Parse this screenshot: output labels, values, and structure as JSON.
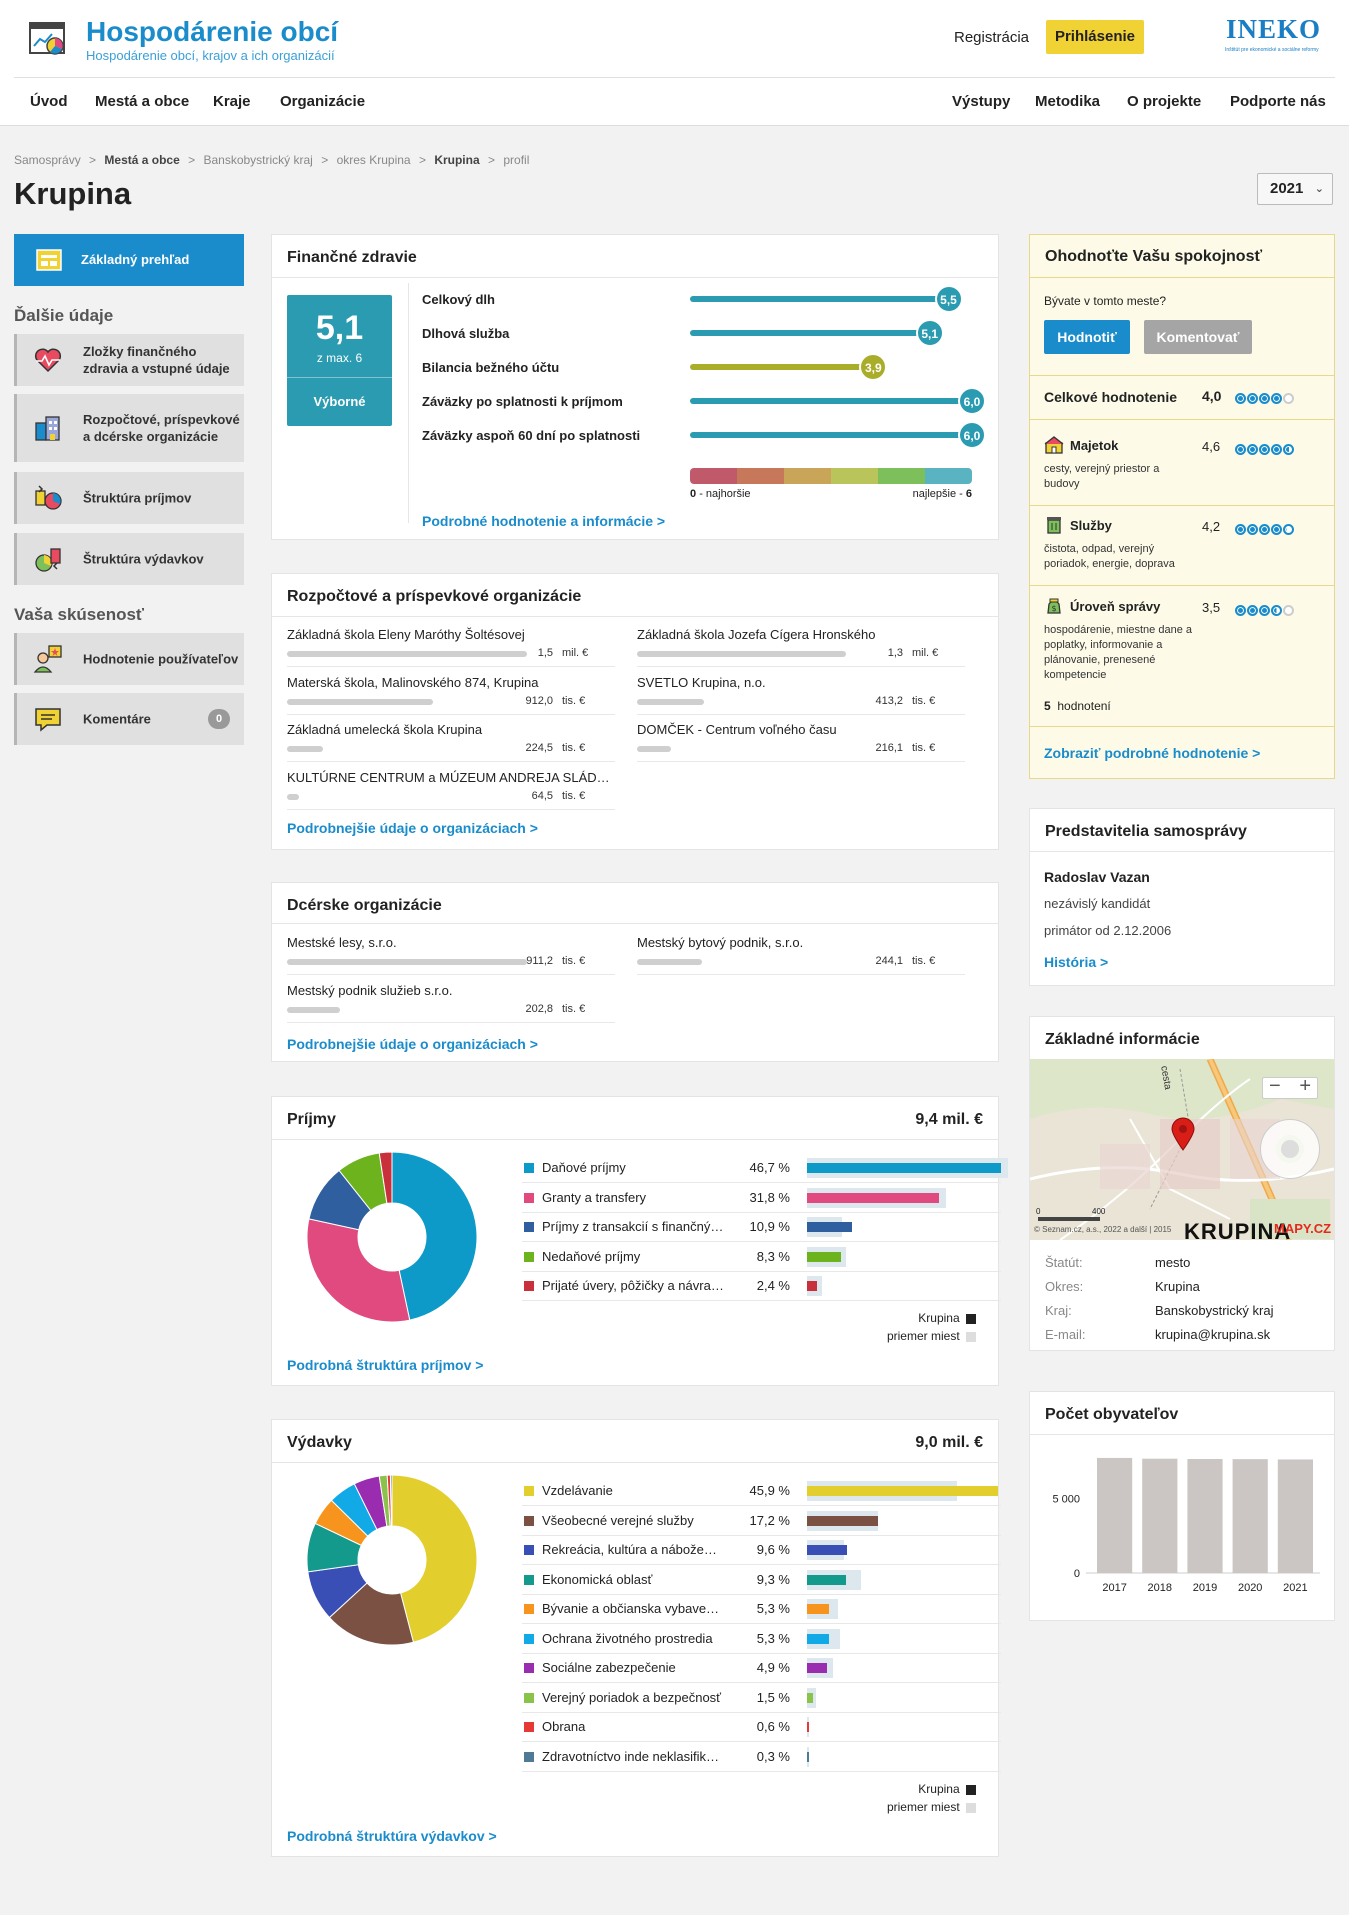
{
  "header": {
    "title": "Hospodárenie obcí",
    "subtitle": "Hospodárenie obcí, krajov a ich organizácií",
    "register": "Registrácia",
    "login": "Prihlásenie",
    "partner_logo": "INEKO",
    "partner_sub": "Inštitút pre ekonomické a sociálne reformy"
  },
  "nav": {
    "left": [
      "Úvod",
      "Mestá a obce",
      "Kraje",
      "Organizácie"
    ],
    "right": [
      "Výstupy",
      "Metodika",
      "O projekte",
      "Podporte nás"
    ]
  },
  "breadcrumb": [
    "Samosprávy",
    "Mestá a obce",
    "Banskobystrický kraj",
    "okres Krupina",
    "Krupina",
    "profil"
  ],
  "page_title": "Krupina",
  "year": "2021",
  "sidebar": {
    "active": "Základný prehľad",
    "section1": "Ďalšie údaje",
    "items1": [
      "Zložky finančného zdravia a vstupné údaje",
      "Rozpočtové, príspevkové a dcérske organizácie",
      "Štruktúra príjmov",
      "Štruktúra výdavkov"
    ],
    "section2": "Vaša skúsenosť",
    "items2": [
      "Hodnotenie používateľov",
      "Komentáre"
    ],
    "comments_count": "0"
  },
  "health": {
    "title": "Finančné zdravie",
    "score": "5,1",
    "max": "z max. 6",
    "verdict": "Výborné",
    "rows": [
      {
        "label": "Celkový dlh",
        "value": "5,5",
        "num": 5.5,
        "color": "#2a9bb0"
      },
      {
        "label": "Dlhová služba",
        "value": "5,1",
        "num": 5.1,
        "color": "#2a9bb0"
      },
      {
        "label": "Bilancia bežného účtu",
        "value": "3,9",
        "num": 3.9,
        "color": "#a9ad2a"
      },
      {
        "label": "Záväzky po splatnosti k príjmom",
        "value": "6,0",
        "num": 6.0,
        "color": "#2a9bb0"
      },
      {
        "label": "Záväzky aspoň 60 dní po splatnosti",
        "value": "6,0",
        "num": 6.0,
        "color": "#2a9bb0"
      }
    ],
    "scale_min": "0",
    "scale_min_label": "- najhoršie",
    "scale_max_label": "najlepšie -",
    "scale_max": "6",
    "scale_colors": [
      "#c05a6a",
      "#c7775a",
      "#c9a55a",
      "#b9c45a",
      "#7dbf5a",
      "#5ab3c0"
    ],
    "link": "Podrobné hodnotenie a informácie  >"
  },
  "budget_orgs": {
    "title": "Rozpočtové a príspevkové organizácie",
    "items": [
      {
        "name": "Základná škola Eleny Maróthy Šoltésovej",
        "value": "1,5",
        "unit": "mil. €",
        "fill": 1.0
      },
      {
        "name": "Základná škola Jozefa Cígera Hronského",
        "value": "1,3",
        "unit": "mil. €",
        "fill": 0.87
      },
      {
        "name": "Materská škola, Malinovského 874, Krupina",
        "value": "912,0",
        "unit": "tis. €",
        "fill": 0.61
      },
      {
        "name": "SVETLO Krupina, n.o.",
        "value": "413,2",
        "unit": "tis. €",
        "fill": 0.28
      },
      {
        "name": "Základná umelecká škola Krupina",
        "value": "224,5",
        "unit": "tis. €",
        "fill": 0.15
      },
      {
        "name": "DOMČEK - Centrum voľného času",
        "value": "216,1",
        "unit": "tis. €",
        "fill": 0.14
      },
      {
        "name": "KULTÚRNE CENTRUM a MÚZEUM ANDREJA SLÁDKOVIČA",
        "value": "64,5",
        "unit": "tis. €",
        "fill": 0.05
      }
    ],
    "link": "Podrobnejšie údaje o organizáciach  >"
  },
  "daughter_orgs": {
    "title": "Dcérske organizácie",
    "items": [
      {
        "name": "Mestské lesy, s.r.o.",
        "value": "911,2",
        "unit": "tis. €",
        "fill": 1.0
      },
      {
        "name": "Mestský bytový podnik, s.r.o.",
        "value": "244,1",
        "unit": "tis. €",
        "fill": 0.27
      },
      {
        "name": "Mestský podnik služieb s.r.o.",
        "value": "202,8",
        "unit": "tis. €",
        "fill": 0.22
      }
    ],
    "link": "Podrobnejšie údaje o organizáciach  >"
  },
  "income": {
    "title": "Príjmy",
    "total": "9,4 mil. €",
    "items": [
      {
        "name": "Daňové príjmy",
        "pct": "46,7 %",
        "v": 46.7,
        "avg": 48.5,
        "color": "#0e9ac9"
      },
      {
        "name": "Granty a transfery",
        "pct": "31,8 %",
        "v": 31.8,
        "avg": 33.5,
        "color": "#e04a7f"
      },
      {
        "name": "Príjmy z transakcií s finančnými aktívami",
        "pct": "10,9 %",
        "v": 10.9,
        "avg": 8.5,
        "color": "#2f5f9e"
      },
      {
        "name": "Nedaňové príjmy",
        "pct": "8,3 %",
        "v": 8.3,
        "avg": 9.5,
        "color": "#6cb31e"
      },
      {
        "name": "Prijaté úvery, pôžičky a návratné finančné výpomoci",
        "pct": "2,4 %",
        "v": 2.4,
        "avg": 3.5,
        "color": "#c8313c"
      }
    ],
    "legend_city": "Krupina",
    "legend_avg": "priemer miest",
    "link": "Podrobná štruktúra príjmov  >"
  },
  "expenses": {
    "title": "Výdavky",
    "total": "9,0 mil. €",
    "items": [
      {
        "name": "Vzdelávanie",
        "pct": "45,9 %",
        "v": 45.9,
        "avg": 36.0,
        "color": "#e2cf2e"
      },
      {
        "name": "Všeobecné verejné služby",
        "pct": "17,2 %",
        "v": 17.2,
        "avg": 17.0,
        "color": "#7b5143"
      },
      {
        "name": "Rekreácia, kultúra a náboženstvo",
        "pct": "9,6 %",
        "v": 9.6,
        "avg": 9.0,
        "color": "#3a4fb5"
      },
      {
        "name": "Ekonomická oblasť",
        "pct": "9,3 %",
        "v": 9.3,
        "avg": 13.0,
        "color": "#139a8c"
      },
      {
        "name": "Bývanie a občianska vybavenosť",
        "pct": "5,3 %",
        "v": 5.3,
        "avg": 7.5,
        "color": "#f7941d"
      },
      {
        "name": "Ochrana životného prostredia",
        "pct": "5,3 %",
        "v": 5.3,
        "avg": 8.0,
        "color": "#11a9e6"
      },
      {
        "name": "Sociálne zabezpečenie",
        "pct": "4,9 %",
        "v": 4.9,
        "avg": 6.3,
        "color": "#9a2cb0"
      },
      {
        "name": "Verejný poriadok a bezpečnosť",
        "pct": "1,5 %",
        "v": 1.5,
        "avg": 2.1,
        "color": "#8bc34a"
      },
      {
        "name": "Obrana",
        "pct": "0,6 %",
        "v": 0.6,
        "avg": 0.2,
        "color": "#e53935"
      },
      {
        "name": "Zdravotníctvo inde neklasifikované",
        "pct": "0,3 %",
        "v": 0.3,
        "avg": 0.5,
        "color": "#4f7a96"
      }
    ],
    "legend_city": "Krupina",
    "legend_avg": "priemer miest",
    "link": "Podrobná štruktúra výdavkov  >"
  },
  "rating": {
    "title": "Ohodnoťte Vašu spokojnosť",
    "question": "Bývate v tomto meste?",
    "rate_btn": "Hodnotiť",
    "comment_btn": "Komentovať",
    "overall_label": "Celkové hodnotenie",
    "overall": "4,0",
    "overall_num": 4.0,
    "cats": [
      {
        "name": "Majetok",
        "value": "4,6",
        "num": 4.6,
        "desc": "cesty, verejný priestor a budovy"
      },
      {
        "name": "Služby",
        "value": "4,2",
        "num": 4.2,
        "desc": "čistota, odpad, verejný poriadok, energie, doprava"
      },
      {
        "name": "Úroveň správy",
        "value": "3,5",
        "num": 3.5,
        "desc": "hospodárenie, miestne dane a poplatky, informovanie a plánovanie, prenesené kompetencie"
      }
    ],
    "count": "5",
    "count_label": "hodnotení",
    "link": "Zobraziť podrobné hodnotenie  >"
  },
  "representatives": {
    "title": "Predstavitelia samosprávy",
    "name": "Radoslav Vazan",
    "party": "nezávislý kandidát",
    "since": "primátor od 2.12.2006",
    "link": "História  >"
  },
  "basic_info": {
    "title": "Základné informácie",
    "map_label": "KRUPINA",
    "map_copy": "© Seznam.cz, a.s., 2022 a další | 2015",
    "map_brand": "MAPY.CZ",
    "map_road": "cesta",
    "scale_0": "0",
    "scale_400": "400",
    "rows": [
      {
        "k": "Štatút:",
        "v": "mesto"
      },
      {
        "k": "Okres:",
        "v": "Krupina"
      },
      {
        "k": "Kraj:",
        "v": "Banskobystrický kraj"
      },
      {
        "k": "E-mail:",
        "v": "krupina@krupina.sk"
      }
    ]
  },
  "population": {
    "title": "Počet obyvateľov",
    "chart_data": {
      "type": "bar",
      "categories": [
        "2017",
        "2018",
        "2019",
        "2020",
        "2021"
      ],
      "values": [
        7700,
        7650,
        7630,
        7620,
        7600
      ],
      "ylim": [
        0,
        8500
      ],
      "yticks": [
        "0",
        "5 000"
      ],
      "color": "#cbc6c3"
    }
  },
  "colors": {
    "brand": "#1a8ccb",
    "accent": "#f0d234",
    "teal": "#2a9bb0"
  }
}
